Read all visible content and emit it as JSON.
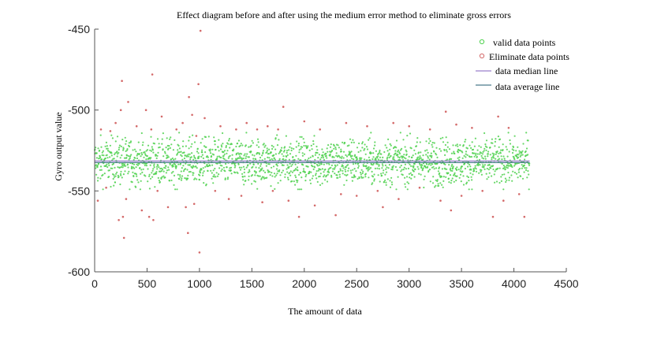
{
  "chart_data": {
    "type": "scatter",
    "title": "Effect diagram before and after using the medium error method to eliminate gross errors",
    "xlabel": "The amount of data",
    "ylabel": "Gyro output value",
    "xlim": [
      0,
      4500
    ],
    "ylim": [
      -600,
      -450
    ],
    "xticks": [
      "0",
      "500",
      "1000",
      "1500",
      "2000",
      "2500",
      "3000",
      "3500",
      "4000",
      "4500"
    ],
    "yticks": [
      "-450",
      "-500",
      "-550",
      "-600"
    ],
    "legend_position": "top-right",
    "n_points": 4150,
    "series": [
      {
        "name": "valid data points",
        "kind": "scatter",
        "color": "#4fd14f",
        "marker": "circle",
        "y_center": -532,
        "y_range": [
          -547,
          -516
        ]
      },
      {
        "name": "Eliminate data points",
        "kind": "scatter",
        "color": "#d46a6a",
        "marker": "circle",
        "points": [
          [
            30,
            -556
          ],
          [
            60,
            -512
          ],
          [
            110,
            -548
          ],
          [
            150,
            -513
          ],
          [
            200,
            -508
          ],
          [
            230,
            -568
          ],
          [
            250,
            -500
          ],
          [
            260,
            -482
          ],
          [
            270,
            -566
          ],
          [
            280,
            -579
          ],
          [
            300,
            -555
          ],
          [
            320,
            -495
          ],
          [
            400,
            -510
          ],
          [
            450,
            -562
          ],
          [
            490,
            -500
          ],
          [
            520,
            -566
          ],
          [
            540,
            -512
          ],
          [
            550,
            -478
          ],
          [
            560,
            -568
          ],
          [
            600,
            -550
          ],
          [
            640,
            -504
          ],
          [
            700,
            -560
          ],
          [
            780,
            -512
          ],
          [
            840,
            -508
          ],
          [
            870,
            -560
          ],
          [
            890,
            -576
          ],
          [
            900,
            -492
          ],
          [
            930,
            -503
          ],
          [
            950,
            -558
          ],
          [
            970,
            -516
          ],
          [
            990,
            -484
          ],
          [
            1000,
            -588
          ],
          [
            1010,
            -451
          ],
          [
            1050,
            -505
          ],
          [
            1150,
            -550
          ],
          [
            1200,
            -510
          ],
          [
            1280,
            -555
          ],
          [
            1350,
            -512
          ],
          [
            1400,
            -553
          ],
          [
            1450,
            -508
          ],
          [
            1550,
            -512
          ],
          [
            1600,
            -557
          ],
          [
            1650,
            -510
          ],
          [
            1700,
            -550
          ],
          [
            1750,
            -512
          ],
          [
            1800,
            -498
          ],
          [
            1850,
            -556
          ],
          [
            1950,
            -566
          ],
          [
            2000,
            -507
          ],
          [
            2100,
            -559
          ],
          [
            2150,
            -512
          ],
          [
            2300,
            -565
          ],
          [
            2350,
            -552
          ],
          [
            2400,
            -508
          ],
          [
            2500,
            -553
          ],
          [
            2600,
            -510
          ],
          [
            2700,
            -550
          ],
          [
            2750,
            -560
          ],
          [
            2850,
            -508
          ],
          [
            2900,
            -555
          ],
          [
            3000,
            -510
          ],
          [
            3100,
            -548
          ],
          [
            3200,
            -512
          ],
          [
            3300,
            -556
          ],
          [
            3350,
            -501
          ],
          [
            3400,
            -562
          ],
          [
            3450,
            -509
          ],
          [
            3500,
            -553
          ],
          [
            3600,
            -511
          ],
          [
            3700,
            -550
          ],
          [
            3800,
            -566
          ],
          [
            3850,
            -504
          ],
          [
            3900,
            -556
          ],
          [
            3950,
            -511
          ],
          [
            4050,
            -552
          ],
          [
            4100,
            -566
          ]
        ]
      },
      {
        "name": "data median line",
        "kind": "line",
        "color": "#9b7fcc",
        "y": -531.5
      },
      {
        "name": "data average line",
        "kind": "line",
        "color": "#4a7a8c",
        "y": -532.5
      }
    ]
  }
}
